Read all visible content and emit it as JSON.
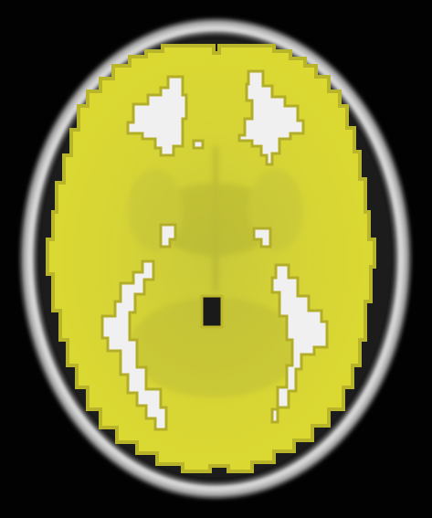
{
  "image": {
    "kind": "axial brain MRI slice with segmentation overlay",
    "colors": {
      "background": "#020202",
      "skull": "#bdbdbd",
      "scalp_inner": "#2a2a2a",
      "overlay": "#d9d62e",
      "overlay_edge": "#c7c427",
      "ventricle": "#f2f2f2"
    }
  }
}
